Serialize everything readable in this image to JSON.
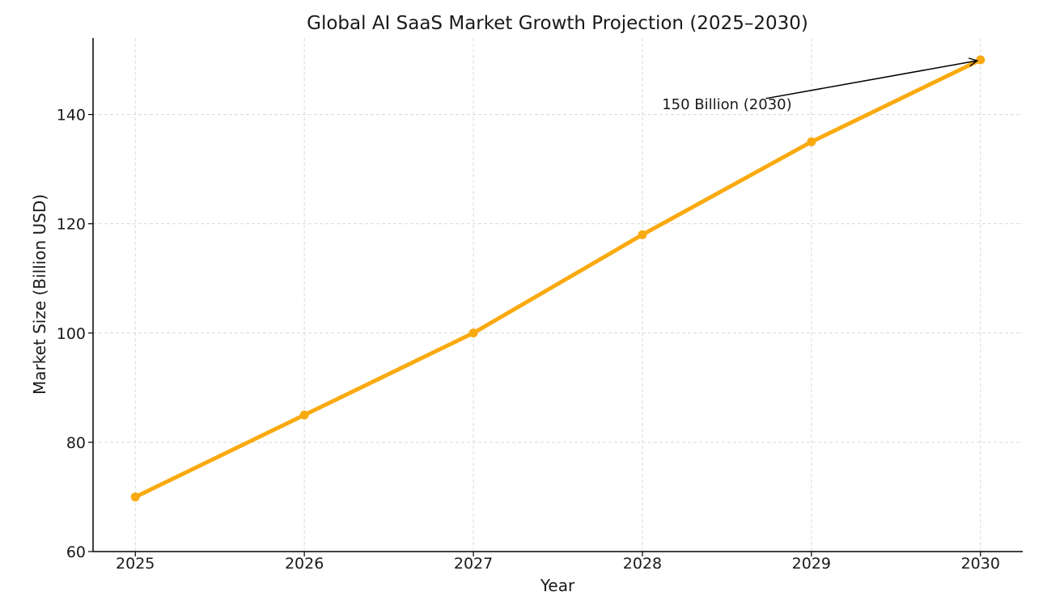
{
  "chart_data": {
    "type": "line",
    "title": "Global AI SaaS Market Growth Projection (2025–2030)",
    "xlabel": "Year",
    "ylabel": "Market Size (Billion USD)",
    "x": [
      2025,
      2026,
      2027,
      2028,
      2029,
      2030
    ],
    "x_tick_labels": [
      "2025",
      "2026",
      "2027",
      "2028",
      "2029",
      "2030"
    ],
    "series": [
      {
        "values": [
          70,
          85,
          100,
          118,
          135,
          150
        ],
        "color": "#f9aa0f",
        "marker": "circle"
      }
    ],
    "xlim": [
      2024.75,
      2030.25
    ],
    "ylim": [
      60,
      154
    ],
    "y_ticks": [
      60,
      80,
      100,
      120,
      140
    ],
    "y_tick_labels": [
      "60",
      "80",
      "100",
      "120",
      "140"
    ],
    "grid": true,
    "annotation": {
      "text": "150 Billion (2030)",
      "target_x": 2030,
      "target_y": 150,
      "text_x": 2028.5,
      "text_y": 141,
      "arrow_color": "#000000"
    },
    "colors": {
      "grid": "#d9d9d9",
      "axis": "#000000",
      "text": "#1a1a1a"
    }
  }
}
